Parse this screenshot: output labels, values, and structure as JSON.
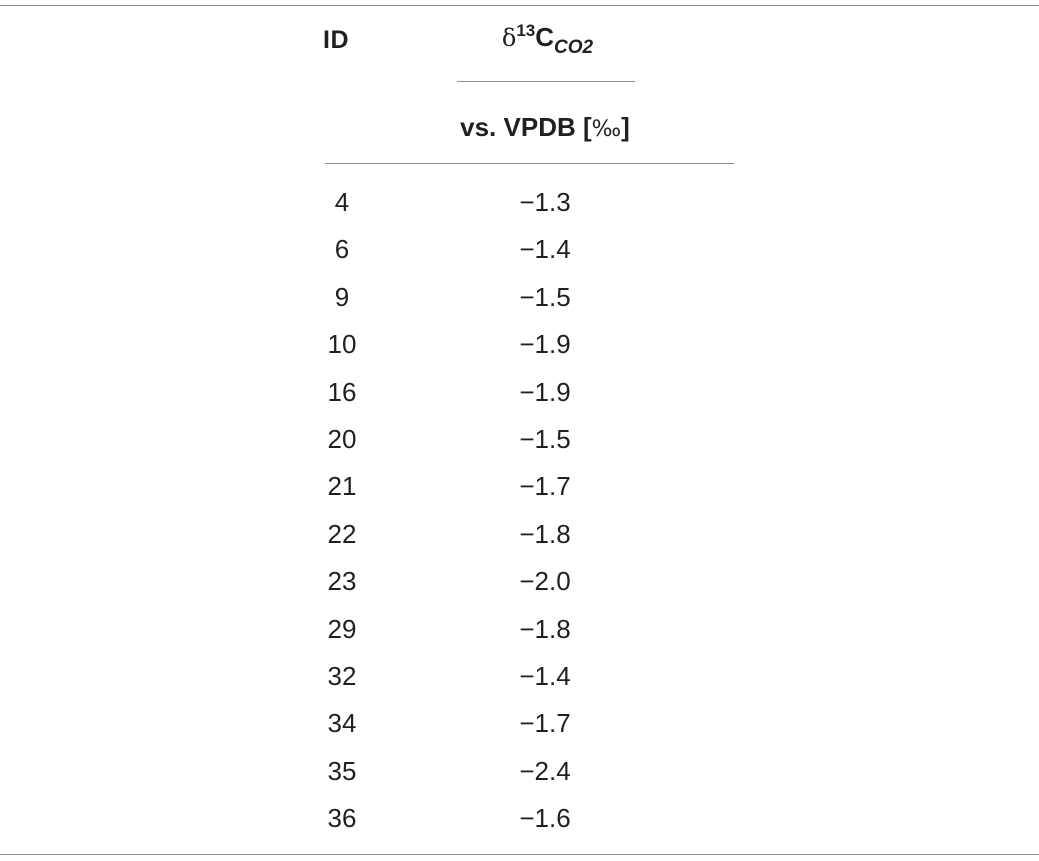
{
  "table": {
    "headers": {
      "id": "ID",
      "delta_symbol": "δ",
      "delta_superscript": "13",
      "delta_element": "C",
      "delta_subscript": "CO2",
      "unit_line_prefix": "vs. VPDB [",
      "unit_symbol": "‰",
      "unit_line_suffix": "]"
    },
    "rows": [
      {
        "id": "4",
        "value": "−1.3"
      },
      {
        "id": "6",
        "value": "−1.4"
      },
      {
        "id": "9",
        "value": "−1.5"
      },
      {
        "id": "10",
        "value": "−1.9"
      },
      {
        "id": "16",
        "value": "−1.9"
      },
      {
        "id": "20",
        "value": "−1.5"
      },
      {
        "id": "21",
        "value": "−1.7"
      },
      {
        "id": "22",
        "value": "−1.8"
      },
      {
        "id": "23",
        "value": "−2.0"
      },
      {
        "id": "29",
        "value": "−1.8"
      },
      {
        "id": "32",
        "value": "−1.4"
      },
      {
        "id": "34",
        "value": "−1.7"
      },
      {
        "id": "35",
        "value": "−2.4"
      },
      {
        "id": "36",
        "value": "−1.6"
      }
    ]
  }
}
